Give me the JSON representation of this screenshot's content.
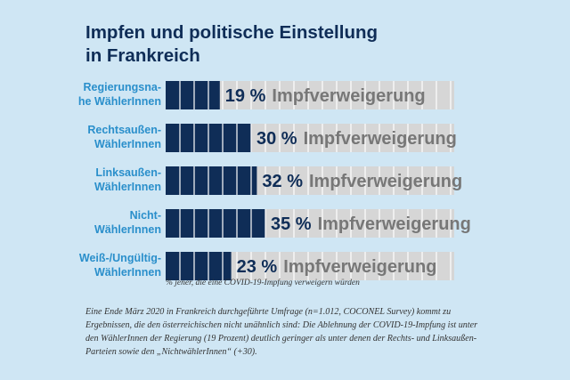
{
  "colors": {
    "background": "#cfe6f4",
    "bar_fill": "#0f2d57",
    "track_fill": "#d6d6d6",
    "category_label": "#2a8fcb",
    "title": "#0f2d57",
    "suffix_label": "#777777"
  },
  "chart_data": {
    "type": "bar",
    "orientation": "horizontal",
    "title": [
      "Impfen und politische Einstellung",
      "in Frankreich"
    ],
    "categories": [
      [
        "Regierungsna-",
        "he WählerInnen"
      ],
      [
        "Rechtsaußen-",
        "WählerInnen"
      ],
      [
        "Linksaußen-",
        "WählerInnen"
      ],
      [
        "Nicht-",
        "WählerInnen"
      ],
      [
        "Weiß-/Ungültig-",
        "WählerInnen"
      ]
    ],
    "values": [
      19,
      30,
      32,
      35,
      23
    ],
    "value_labels": [
      "19 %",
      "30 %",
      "32 %",
      "35 %",
      "23 %"
    ],
    "value_suffix": "Impfverweigerung",
    "unit": "%",
    "xlim": [
      0,
      100
    ],
    "footnote": "% jener, die eine COVID-19-Impfung verweigern würden"
  },
  "caption": "Eine Ende März 2020 in Frankreich durchgeführte Umfrage (n=1.012, COCONEL Survey) kommt zu Ergebnissen, die den österreichischen nicht unähnlich sind: Die Ablehnung der COVID-19-Impfung ist unter den WählerInnen der Regierung (19 Prozent) deutlich geringer als unter denen der Rechts- und Linksaußen-Parteien sowie den „NichtwählerInnen“ (+30)."
}
